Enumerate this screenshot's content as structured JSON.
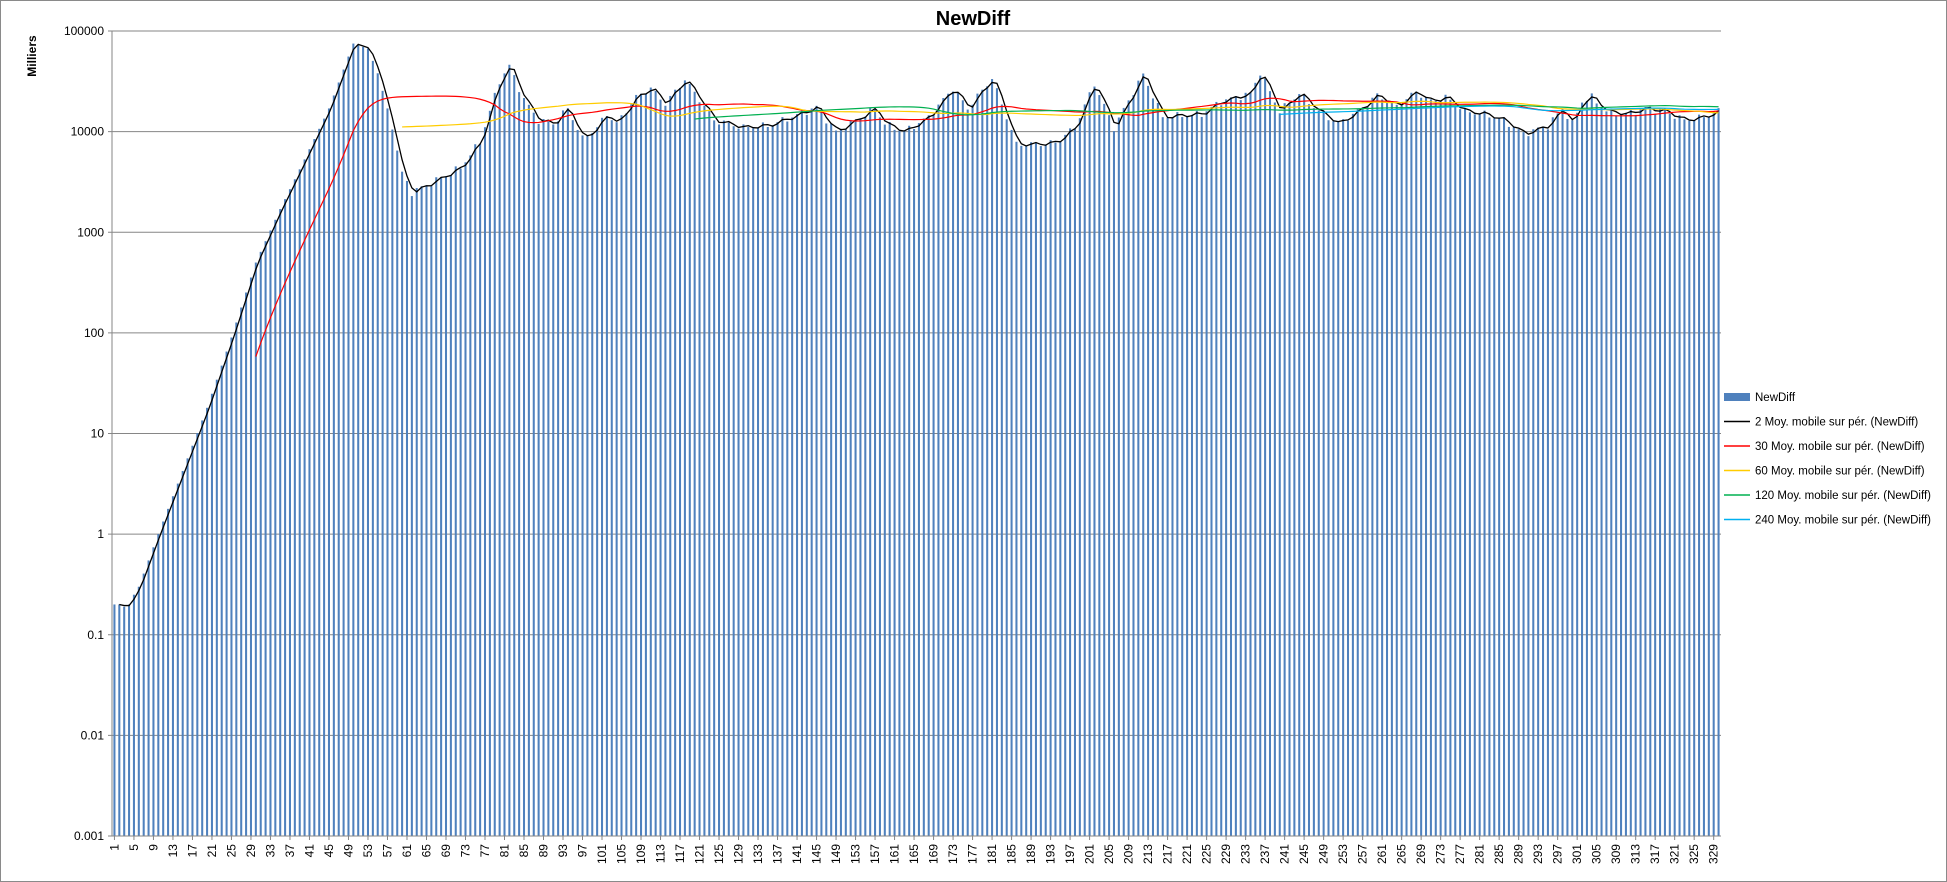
{
  "chart_data": {
    "type": "bar",
    "title": "NewDiff",
    "xlabel": "",
    "ylabel": "Milliers",
    "yscale": "log",
    "ylim": [
      0.001,
      100000
    ],
    "y_ticks": [
      "0.001",
      "0.01",
      "0.1",
      "1",
      "10",
      "100",
      "1000",
      "10000",
      "100000"
    ],
    "x_range": [
      1,
      330
    ],
    "x_tick_labels": [
      "1",
      "5",
      "9",
      "13",
      "17",
      "21",
      "25",
      "29",
      "33",
      "37",
      "41",
      "45",
      "49",
      "53",
      "57",
      "61",
      "65",
      "69",
      "73",
      "77",
      "81",
      "85",
      "89",
      "93",
      "97",
      "101",
      "105",
      "109",
      "113",
      "117",
      "121",
      "125",
      "129",
      "133",
      "137",
      "141",
      "145",
      "149",
      "153",
      "157",
      "161",
      "165",
      "169",
      "173",
      "177",
      "181",
      "185",
      "189",
      "193",
      "197",
      "201",
      "205",
      "209",
      "213",
      "217",
      "221",
      "225",
      "229",
      "233",
      "237",
      "241",
      "245",
      "249",
      "253",
      "257",
      "261",
      "265",
      "269",
      "273",
      "277",
      "281",
      "285",
      "289",
      "293",
      "297",
      "301",
      "305",
      "309",
      "313",
      "317",
      "321",
      "325",
      "329"
    ],
    "grid": true,
    "legend_position": "right",
    "bar_series": {
      "name": "NewDiff",
      "color": "#4f81bd",
      "anchors": [
        [
          1,
          0.2
        ],
        [
          2,
          0.2
        ],
        [
          3,
          0.19
        ],
        [
          4,
          0.2
        ],
        [
          5,
          0.25
        ],
        [
          6,
          0.3
        ],
        [
          10,
          1.0
        ],
        [
          20,
          18
        ],
        [
          25,
          90
        ],
        [
          30,
          500
        ],
        [
          35,
          1700
        ],
        [
          40,
          5300
        ],
        [
          45,
          17000
        ],
        [
          50,
          75000
        ],
        [
          53,
          67000
        ],
        [
          55,
          38000
        ],
        [
          57,
          17000
        ],
        [
          60,
          4000
        ],
        [
          62,
          2500
        ],
        [
          66,
          3100
        ],
        [
          72,
          4400
        ],
        [
          76,
          8000
        ],
        [
          80,
          32000
        ],
        [
          82,
          45000
        ],
        [
          85,
          21000
        ],
        [
          88,
          13000
        ],
        [
          91,
          12000
        ],
        [
          94,
          17000
        ],
        [
          97,
          8500
        ],
        [
          100,
          11000
        ],
        [
          102,
          15000
        ],
        [
          104,
          12000
        ],
        [
          108,
          22000
        ],
        [
          111,
          27000
        ],
        [
          114,
          19000
        ],
        [
          118,
          33000
        ],
        [
          121,
          21000
        ],
        [
          124,
          13000
        ],
        [
          130,
          11000
        ],
        [
          135,
          11500
        ],
        [
          140,
          14000
        ],
        [
          145,
          17500
        ],
        [
          149,
          10000
        ],
        [
          153,
          13000
        ],
        [
          157,
          17000
        ],
        [
          159,
          12000
        ],
        [
          163,
          10000
        ],
        [
          168,
          14000
        ],
        [
          173,
          27000
        ],
        [
          176,
          17000
        ],
        [
          181,
          34000
        ],
        [
          184,
          14000
        ],
        [
          186,
          7500
        ],
        [
          190,
          7500
        ],
        [
          194,
          7800
        ],
        [
          198,
          11000
        ],
        [
          202,
          30000
        ],
        [
          206,
          11000
        ],
        [
          210,
          25000
        ],
        [
          212,
          37000
        ],
        [
          216,
          14000
        ],
        [
          220,
          14500
        ],
        [
          224,
          15000
        ],
        [
          228,
          20000
        ],
        [
          234,
          24000
        ],
        [
          236,
          39000
        ],
        [
          240,
          16000
        ],
        [
          244,
          24000
        ],
        [
          248,
          16000
        ],
        [
          252,
          12000
        ],
        [
          256,
          16000
        ],
        [
          260,
          23000
        ],
        [
          264,
          18000
        ],
        [
          268,
          25000
        ],
        [
          271,
          20000
        ],
        [
          274,
          22000
        ],
        [
          278,
          16000
        ],
        [
          282,
          15000
        ],
        [
          286,
          13000
        ],
        [
          290,
          9500
        ],
        [
          295,
          11500
        ],
        [
          298,
          17000
        ],
        [
          300,
          12000
        ],
        [
          302,
          20000
        ],
        [
          304,
          22000
        ],
        [
          307,
          16000
        ],
        [
          311,
          15000
        ],
        [
          315,
          17000
        ],
        [
          319,
          16000
        ],
        [
          323,
          13000
        ],
        [
          327,
          14000
        ],
        [
          330,
          16000
        ]
      ]
    },
    "series": [
      {
        "name": "2 Moy. mobile sur pér. (NewDiff)",
        "type": "moving_average",
        "period": 2,
        "color": "#000000"
      },
      {
        "name": "30 Moy. mobile sur pér. (NewDiff)",
        "type": "moving_average",
        "period": 30,
        "color": "#ff0000"
      },
      {
        "name": "60 Moy. mobile sur pér. (NewDiff)",
        "type": "moving_average",
        "period": 60,
        "color": "#ffcc00"
      },
      {
        "name": "120 Moy. mobile sur pér. (NewDiff)",
        "type": "moving_average",
        "period": 120,
        "color": "#00b050"
      },
      {
        "name": "240 Moy. mobile sur pér. (NewDiff)",
        "type": "moving_average",
        "period": 240,
        "color": "#00b0f0"
      }
    ]
  }
}
